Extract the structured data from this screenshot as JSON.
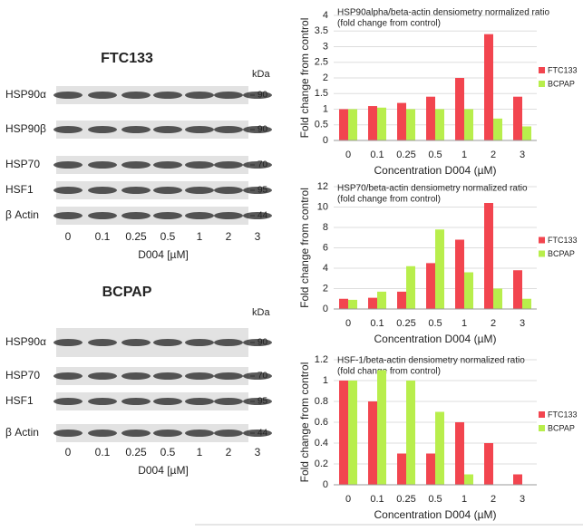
{
  "blots": [
    {
      "cell_line": "FTC133",
      "kda_label": "kDa",
      "x_label": "D004 [µM]",
      "lanes": [
        "0",
        "0.1",
        "0.25",
        "0.5",
        "1",
        "2",
        "3"
      ],
      "rows": [
        {
          "protein": "HSP90α",
          "kda": 90
        },
        {
          "protein": "HSP90β",
          "kda": 90
        },
        {
          "protein": "HSP70",
          "kda": 70
        },
        {
          "protein": "HSF1",
          "kda": 95
        },
        {
          "protein": "β Actin",
          "kda": 44
        }
      ]
    },
    {
      "cell_line": "BCPAP",
      "kda_label": "kDa",
      "x_label": "D004 [µM]",
      "lanes": [
        "0",
        "0.1",
        "0.25",
        "0.5",
        "1",
        "2",
        "3"
      ],
      "rows": [
        {
          "protein": "HSP90α",
          "kda": 90
        },
        {
          "protein": "HSP70",
          "kda": 70
        },
        {
          "protein": "HSF1",
          "kda": 95
        },
        {
          "protein": "β Actin",
          "kda": 44
        }
      ]
    }
  ],
  "chart_data": [
    {
      "type": "bar",
      "title": [
        "HSP90alpha/beta-actin densiometry normalized ratio",
        "(fold change from control)"
      ],
      "y_label": "Fold change from control",
      "x_label": "Concentration D004 (µM)",
      "categories": [
        "0",
        "0.1",
        "0.25",
        "0.5",
        "1",
        "2",
        "3"
      ],
      "series": [
        {
          "name": "FTC133",
          "color": "#f2454f",
          "values": [
            1,
            1.1,
            1.2,
            1.4,
            2.0,
            3.4,
            1.4
          ]
        },
        {
          "name": "BCPAP",
          "color": "#b8ee4c",
          "values": [
            1,
            1.05,
            1.0,
            1.0,
            1.0,
            0.7,
            0.45
          ]
        }
      ],
      "ylim": [
        0,
        4
      ],
      "yticks": [
        0,
        0.5,
        1,
        1.5,
        2,
        2.5,
        3,
        3.5,
        4
      ],
      "grid": true,
      "legend": "right"
    },
    {
      "type": "bar",
      "title": [
        "HSP70/beta-actin densiometry normalized ratio",
        "(fold change from control)"
      ],
      "y_label": "Fold change from control",
      "x_label": "Concentration D004 (µM)",
      "categories": [
        "0",
        "0.1",
        "0.25",
        "0.5",
        "1",
        "2",
        "3"
      ],
      "series": [
        {
          "name": "FTC133",
          "color": "#f2454f",
          "values": [
            1,
            1.1,
            1.7,
            4.5,
            6.8,
            10.4,
            3.8
          ]
        },
        {
          "name": "BCPAP",
          "color": "#b8ee4c",
          "values": [
            0.9,
            1.7,
            4.2,
            7.8,
            3.6,
            2.0,
            1.0
          ]
        }
      ],
      "ylim": [
        0,
        12
      ],
      "yticks": [
        0,
        2,
        4,
        6,
        8,
        10,
        12
      ],
      "grid": true,
      "legend": "right"
    },
    {
      "type": "bar",
      "title": [
        "HSF-1/beta-actin densiometry normalized ratio",
        "(fold change from control)"
      ],
      "y_label": "Fold change from control",
      "x_label": "Concentration D004 (µM)",
      "categories": [
        "0",
        "0.1",
        "0.25",
        "0.5",
        "1",
        "2",
        "3"
      ],
      "series": [
        {
          "name": "FTC133",
          "color": "#f2454f",
          "values": [
            1,
            0.8,
            0.3,
            0.3,
            0.6,
            0.4,
            0.1
          ]
        },
        {
          "name": "BCPAP",
          "color": "#b8ee4c",
          "values": [
            1,
            1.1,
            1.0,
            0.7,
            0.1,
            0,
            0
          ]
        }
      ],
      "ylim": [
        0,
        1.2
      ],
      "yticks": [
        0,
        0.2,
        0.4,
        0.6,
        0.8,
        1,
        1.2
      ],
      "grid": true,
      "legend": "right"
    }
  ]
}
